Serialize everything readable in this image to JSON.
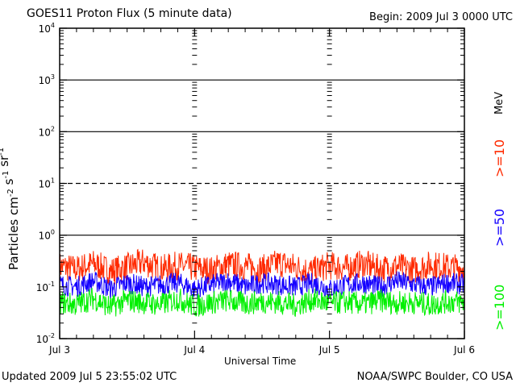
{
  "header": {
    "title": "GOES11 Proton Flux (5 minute data)",
    "begin": "Begin: 2009 Jul 3 0000 UTC"
  },
  "footer": {
    "updated": "Updated 2009 Jul  5 23:55:02 UTC",
    "source": "NOAA/SWPC Boulder, CO USA"
  },
  "colors": {
    "ge10": "#ff2a00",
    "ge50": "#1400ff",
    "ge100": "#00f000",
    "axis": "#000000"
  },
  "chart_data": {
    "type": "line",
    "title": "GOES11 Proton Flux (5 minute data)",
    "xlabel": "Universal Time",
    "ylabel": "Particles cm^-2 s^-1 sr^-1",
    "yscale": "log",
    "ylim": [
      0.01,
      10000
    ],
    "x_ticks": [
      "Jul 3",
      "Jul 4",
      "Jul 5",
      "Jul 6"
    ],
    "x_range": [
      "2009-07-03 00:00",
      "2009-07-06 00:00"
    ],
    "y_ticks": [
      "10^-2",
      "10^-1",
      "10^0",
      "10^1",
      "10^2",
      "10^3",
      "10^4"
    ],
    "reference_lines": [
      {
        "value": 1,
        "style": "solid"
      },
      {
        "value": 10,
        "style": "dashed"
      },
      {
        "value": 100,
        "style": "solid"
      },
      {
        "value": 1000,
        "style": "solid"
      }
    ],
    "units_label": "MeV",
    "x_time_hours": [
      0,
      3,
      6,
      9,
      12,
      15,
      18,
      21,
      24,
      27,
      30,
      33,
      36,
      39,
      42,
      45,
      48,
      51,
      54,
      57,
      60,
      63,
      66,
      69,
      72
    ],
    "series": [
      {
        "name": ">=10",
        "color": "#ff2a00",
        "values": [
          0.25,
          0.22,
          0.28,
          0.2,
          0.24,
          0.3,
          0.22,
          0.26,
          0.23,
          0.21,
          0.27,
          0.25,
          0.22,
          0.29,
          0.24,
          0.2,
          0.26,
          0.23,
          0.28,
          0.22,
          0.25,
          0.21,
          0.27,
          0.24,
          0.23
        ]
      },
      {
        "name": ">=50",
        "color": "#1400ff",
        "values": [
          0.11,
          0.1,
          0.13,
          0.09,
          0.12,
          0.1,
          0.11,
          0.12,
          0.09,
          0.11,
          0.13,
          0.1,
          0.12,
          0.11,
          0.1,
          0.12,
          0.09,
          0.11,
          0.12,
          0.1,
          0.13,
          0.11,
          0.1,
          0.12,
          0.11
        ]
      },
      {
        "name": ">=100",
        "color": "#00f000",
        "values": [
          0.05,
          0.045,
          0.06,
          0.04,
          0.055,
          0.05,
          0.045,
          0.058,
          0.042,
          0.05,
          0.055,
          0.047,
          0.052,
          0.05,
          0.044,
          0.056,
          0.048,
          0.051,
          0.046,
          0.054,
          0.049,
          0.05,
          0.045,
          0.052,
          0.05
        ]
      }
    ]
  }
}
